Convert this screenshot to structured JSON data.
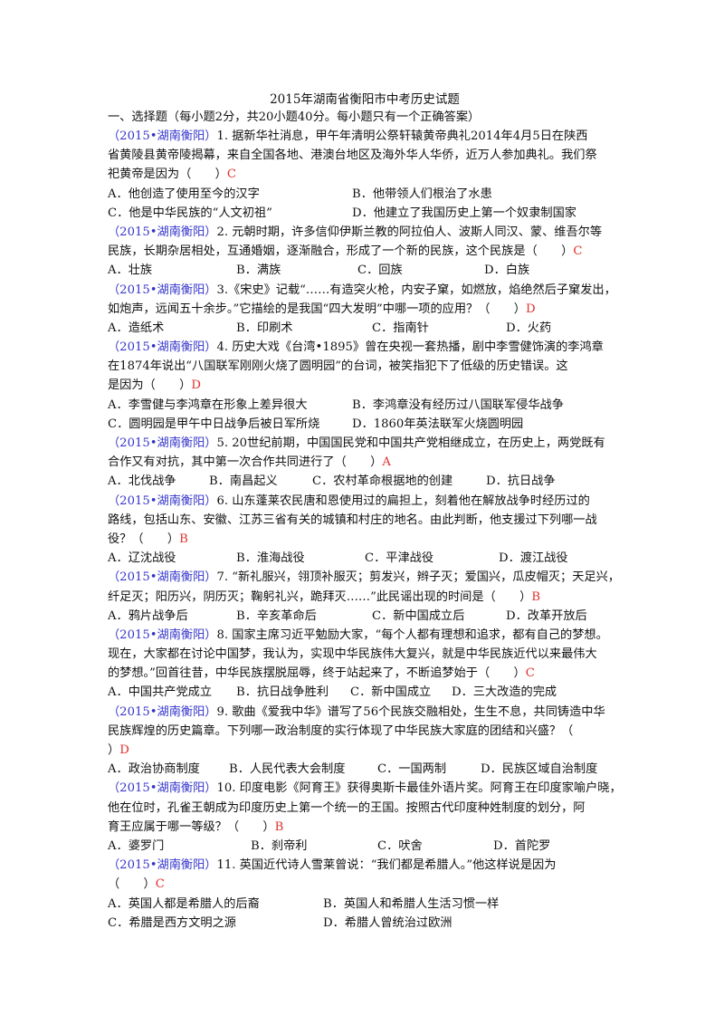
{
  "title": "2015年湖南省衡阳市中考历史试题",
  "section": "一、选择题（每小题2分，共20小题40分。每小题只有一个正确答案）",
  "questions": [
    {
      "lines": [
        {
          "src": "（2015•湖南衡阳）",
          "text": "1. 据新华社消息，甲午年清明公祭轩辕黄帝典礼2014年4月5日在陕西"
        },
        {
          "text": "省黄陵县黄帝陵揭幕，来自全国各地、港澳台地区及海外华人华侨，近万人参加典礼。我们祭"
        },
        {
          "text": "祀黄帝是因为（　　）",
          "ans": "C"
        }
      ],
      "options": [
        {
          "row": 0,
          "col": 0,
          "text": "A．他创造了使用至今的汉字"
        },
        {
          "row": 0,
          "col": 270,
          "text": "B．他带领人们根治了水患"
        },
        {
          "row": 1,
          "col": 0,
          "text": "C．他是中华民族的“人文初祖”"
        },
        {
          "row": 1,
          "col": 270,
          "text": "D．他建立了我国历史上第一个奴隶制国家"
        }
      ]
    },
    {
      "lines": [
        {
          "src": "（2015•湖南衡阳）",
          "text": "2. 元朝时期，许多信仰伊斯兰教的阿拉伯人、波斯人同汉、蒙、维吾尔等"
        },
        {
          "text": "民族，长期杂居相处，互通婚姻，逐渐融合，形成了一个新的民族，这个民族是（　　）",
          "ans": "C"
        }
      ],
      "options": [
        {
          "row": 0,
          "col": 0,
          "text": "A．壮族"
        },
        {
          "row": 0,
          "col": 142,
          "text": "B．满族"
        },
        {
          "row": 0,
          "col": 276,
          "text": "C．回族"
        },
        {
          "row": 0,
          "col": 416,
          "text": "D．白族"
        }
      ]
    },
    {
      "lines": [
        {
          "src": "（2015•湖南衡阳）",
          "text": "3.《宋史》记载“……有造突火枪，内安子窠，如燃放，焰绝然后子窠发出，"
        },
        {
          "text": "如炮声，远闻五十余步。”它描绘的是我国“四大发明”中哪一项的应用？（　　）",
          "ans": "D"
        }
      ],
      "options": [
        {
          "row": 0,
          "col": 0,
          "text": "A．造纸术"
        },
        {
          "row": 0,
          "col": 142,
          "text": "B．印刷术"
        },
        {
          "row": 0,
          "col": 292,
          "text": "C．指南针"
        },
        {
          "row": 0,
          "col": 440,
          "text": "D．火药"
        }
      ]
    },
    {
      "lines": [
        {
          "src": "（2015•湖南衡阳）",
          "text": "4. 历史大戏《台湾•1895》曾在央视一套热播，剧中李雪健饰演的李鸿章"
        },
        {
          "text": "在1874年说出“八国联军刚刚火烧了圆明园”的台词，被笑指犯下了低级的历史错误。这"
        },
        {
          "text": "是因为（　　）",
          "ans": "D"
        }
      ],
      "options": [
        {
          "row": 0,
          "col": 0,
          "text": "A．李雪健与李鸿章在形象上差异很大"
        },
        {
          "row": 0,
          "col": 270,
          "text": "B．李鸿章没有经历过八国联军侵华战争"
        },
        {
          "row": 1,
          "col": 0,
          "text": "C．圆明园是甲午中日战争后被日军所烧"
        },
        {
          "row": 1,
          "col": 270,
          "text": "D．1860年英法联军火烧圆明园"
        }
      ]
    },
    {
      "lines": [
        {
          "src": "（2015•湖南衡阳）",
          "text": "5. 20世纪前期，中国国民党和中国共产党相继成立，在历史上，两党既有"
        },
        {
          "text": "合作又有对抗，其中第一次合作共同进行了（　　）",
          "ans": "A"
        }
      ],
      "options": [
        {
          "row": 0,
          "col": 0,
          "text": "A．北伐战争"
        },
        {
          "row": 0,
          "col": 112,
          "text": "B．南昌起义"
        },
        {
          "row": 0,
          "col": 226,
          "text": "C．农村革命根据地的创建"
        },
        {
          "row": 0,
          "col": 418,
          "text": "D．抗日战争"
        }
      ]
    },
    {
      "lines": [
        {
          "src": "（2015•湖南衡阳）",
          "text": "6. 山东蓬莱农民唐和恩使用过的扁担上，刻着他在解放战争时经历过的"
        },
        {
          "text": "路线，包括山东、安徽、江苏三省有关的城镇和村庄的地名。由此判断，他支援过下列哪一战"
        },
        {
          "text": "役？（　　）",
          "ans": "B"
        }
      ],
      "options": [
        {
          "row": 0,
          "col": 0,
          "text": "A．辽沈战役"
        },
        {
          "row": 0,
          "col": 142,
          "text": "B．淮海战役"
        },
        {
          "row": 0,
          "col": 284,
          "text": "C．平津战役"
        },
        {
          "row": 0,
          "col": 432,
          "text": "D．渡江战役"
        }
      ]
    },
    {
      "lines": [
        {
          "src": "（2015•湖南衡阳）",
          "text": "7. “新礼服兴，翎顶补服灭；剪发兴，辫子灭；爱国兴，瓜皮帽灭；天足兴，"
        },
        {
          "text": "纤足灭；阳历兴，阴历灭；鞠躬礼兴，跪拜灭……”此民谣出现的时间是（　　）",
          "ans": "B"
        }
      ],
      "options": [
        {
          "row": 0,
          "col": 0,
          "text": "A．鸦片战争后"
        },
        {
          "row": 0,
          "col": 142,
          "text": "B．辛亥革命后"
        },
        {
          "row": 0,
          "col": 292,
          "text": "C．新中国成立后"
        },
        {
          "row": 0,
          "col": 440,
          "text": "D．改革开放后"
        }
      ]
    },
    {
      "lines": [
        {
          "src": "（2015•湖南衡阳）",
          "text": "8. 国家主席习近平勉励大家，“每个人都有理想和追求，都有自己的梦想。"
        },
        {
          "text": "现在，大家都在讨论中国梦，我认为，实现中华民族伟大复兴，就是中华民族近代以来最伟大"
        },
        {
          "text": "的梦想。”回首往昔，中华民族摆脱屈辱，终于站起来了，不断追梦始于（　　）",
          "ans": "C"
        }
      ],
      "options": [
        {
          "row": 0,
          "col": 0,
          "text": "A．中国共产党成立"
        },
        {
          "row": 0,
          "col": 142,
          "text": "B．抗日战争胜利"
        },
        {
          "row": 0,
          "col": 268,
          "text": "C．新中国成立"
        },
        {
          "row": 0,
          "col": 380,
          "text": "D．三大改造的完成"
        }
      ]
    },
    {
      "lines": [
        {
          "src": "（2015•湖南衡阳）",
          "text": "9. 歌曲《爱我中华》谱写了56个民族交融相处，生生不息，共同铸造中华"
        },
        {
          "text": "民族辉煌的历史篇章。下列哪一政治制度的实行体现了中华民族大家庭的团结和兴盛？（"
        },
        {
          "text": "）",
          "ans": "D"
        }
      ],
      "options": [
        {
          "row": 0,
          "col": 0,
          "text": "A．政治协商制度"
        },
        {
          "row": 0,
          "col": 134,
          "text": "B．人民代表大会制度"
        },
        {
          "row": 0,
          "col": 298,
          "text": "C．一国两制"
        },
        {
          "row": 0,
          "col": 412,
          "text": "D．民族区域自治制度"
        }
      ]
    },
    {
      "lines": [
        {
          "src": "（2015•湖南衡阳）",
          "text": "10. 印度电影《阿育王》获得奥斯卡最佳外语片奖。阿育王在印度家喻户晓，"
        },
        {
          "text": "他在位时，孔雀王朝成为印度历史上第一个统一的王国。按照古代印度种姓制度的划分，阿"
        },
        {
          "text": "育王应属于哪一等级？（　　）",
          "ans": "B"
        }
      ],
      "options": [
        {
          "row": 0,
          "col": 0,
          "text": "A．婆罗门"
        },
        {
          "row": 0,
          "col": 158,
          "text": "B．刹帝利"
        },
        {
          "row": 0,
          "col": 298,
          "text": "C．吠舍"
        },
        {
          "row": 0,
          "col": 426,
          "text": "D．首陀罗"
        }
      ]
    },
    {
      "lines": [
        {
          "src": "（2015•湖南衡阳）",
          "text": "11. 英国近代诗人雪莱曾说：“我们都是希腊人。”他这样说是因为"
        },
        {
          "text": "（　　）",
          "ans": "C"
        }
      ],
      "options": [
        {
          "row": 0,
          "col": 0,
          "text": "A．英国人都是希腊人的后裔"
        },
        {
          "row": 0,
          "col": 238,
          "text": "B．英国人和希腊人生活习惯一样"
        },
        {
          "row": 1,
          "col": 0,
          "text": "C．希腊是西方文明之源"
        },
        {
          "row": 1,
          "col": 238,
          "text": "D．希腊人曾统治过欧洲"
        }
      ]
    }
  ]
}
